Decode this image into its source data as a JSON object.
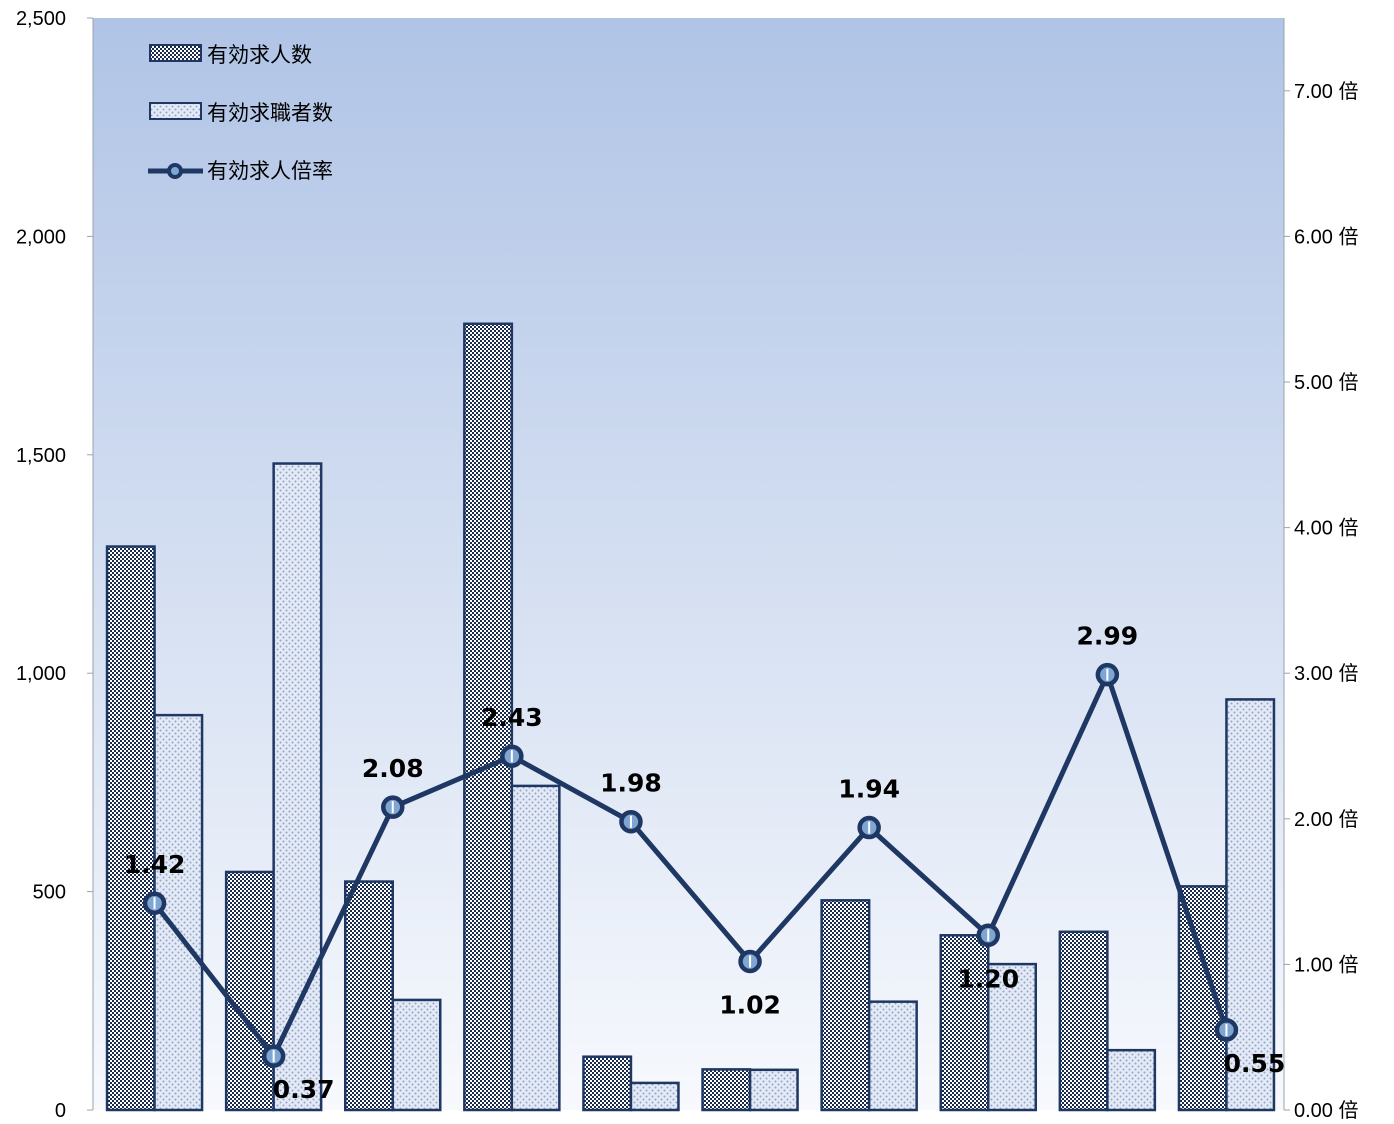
{
  "chart_data": {
    "type": "bar",
    "categories": [
      "",
      "",
      "",
      "",
      "",
      "",
      "",
      "",
      "",
      ""
    ],
    "series": [
      {
        "name": "有効求人数",
        "type": "bar",
        "axis": "left",
        "values": [
          1290,
          545,
          523,
          1800,
          122,
          93,
          480,
          400,
          408,
          512
        ]
      },
      {
        "name": "有効求職者数",
        "type": "bar",
        "axis": "left",
        "values": [
          904,
          1480,
          252,
          742,
          62,
          92,
          248,
          334,
          137,
          940
        ]
      },
      {
        "name": "有効求人倍率",
        "type": "line",
        "axis": "right",
        "values": [
          1.42,
          0.37,
          2.08,
          2.43,
          1.98,
          1.02,
          1.94,
          1.2,
          2.99,
          0.55
        ],
        "labels": [
          "1.42",
          "0.37",
          "2.08",
          "2.43",
          "1.98",
          "1.02",
          "1.94",
          "1.20",
          "2.99",
          "0.55"
        ]
      }
    ],
    "left_axis": {
      "ylim": [
        0,
        2500
      ],
      "ticks": [
        0,
        500,
        1000,
        1500,
        2000,
        2500
      ],
      "tick_labels": [
        "0",
        "500",
        "1,000",
        "1,500",
        "2,000",
        "2,500"
      ]
    },
    "right_axis": {
      "ylim": [
        0,
        7.5
      ],
      "ticks": [
        0,
        1,
        2,
        3,
        4,
        5,
        6,
        7
      ],
      "tick_labels": [
        "0.00 倍",
        "1.00 倍",
        "2.00 倍",
        "3.00 倍",
        "4.00 倍",
        "5.00 倍",
        "6.00 倍",
        "7.00 倍"
      ]
    },
    "legend_position": "top-left",
    "grid": false,
    "title": "",
    "xlabel": "",
    "ylabel": ""
  },
  "colors": {
    "bg_top": "#b0c4e6",
    "bg_bottom": "#f7f9fd",
    "bar1_dark": "#1b2b4c",
    "bar1_light": "#ffffff",
    "bar2_base": "#e3eaf5",
    "bar2_dot": "#8ea4c8",
    "line": "#1f3763",
    "marker_fill": "#7fa6d3",
    "bar_stroke": "#1f3763"
  }
}
